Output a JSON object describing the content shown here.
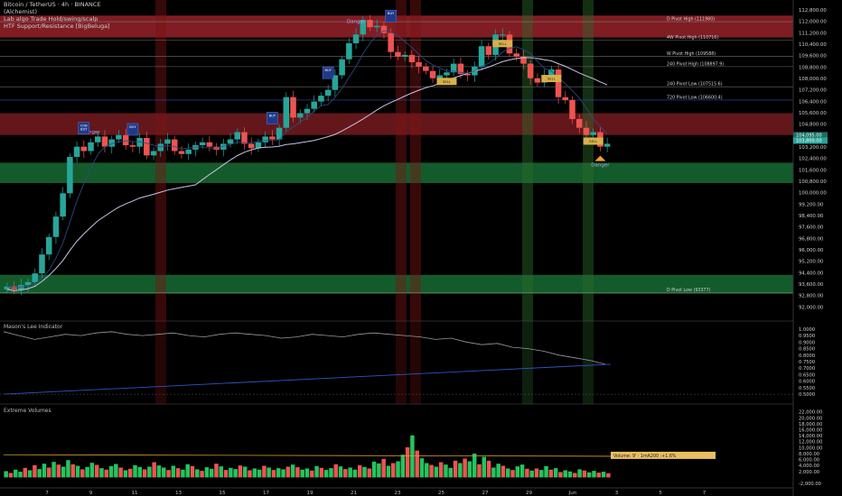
{
  "header": {
    "title": "Bitcoin / TetherUS · 4h · BINANCE",
    "line2": "(Alchemist)",
    "line3": "Lab algo Trade Hold/swing/scalp",
    "line4": "HTF Support/Resistance [BigBeluga]"
  },
  "panes": {
    "lee": "Mason's Lee Indicator",
    "vol": "Extreme Volumes"
  },
  "colors": {
    "up": "#26a69a",
    "up_bright": "#22c55e",
    "down": "#ef5350",
    "resistance": "#b52a32",
    "support": "#1b7a3a",
    "ma": "#c9c3e6",
    "tag_blue": "#1d3a8a",
    "tag_yellow": "#d8b04a"
  },
  "chart_data": [
    {
      "type": "line",
      "name": "price",
      "title": "Bitcoin / TetherUS · 4h · BINANCE",
      "x_tick_labels": [
        "7",
        "9",
        "11",
        "13",
        "15",
        "17",
        "19",
        "21",
        "23",
        "25",
        "27",
        "29",
        "Jun",
        "3",
        "5",
        "7"
      ],
      "y_ticks": [
        "112,800.00",
        "112,000.00",
        "111,200.00",
        "110,400.00",
        "109,600.00",
        "108,800.00",
        "108,000.00",
        "107,200.00",
        "106,400.00",
        "105,600.00",
        "104,800.00",
        "104,000.00",
        "103,200.00",
        "102,400.00",
        "101,600.00",
        "100,800.00",
        "100,000.00",
        "99,200.00",
        "98,400.00",
        "97,600.00",
        "96,800.00",
        "96,000.00",
        "95,200.00",
        "94,400.00",
        "93,600.00",
        "92,800.00",
        "92,000.00"
      ],
      "ylim": [
        91800,
        113100
      ],
      "close_series": [
        93800,
        93600,
        93900,
        94100,
        94700,
        96000,
        97200,
        98600,
        100200,
        102700,
        103400,
        103100,
        103700,
        104100,
        103400,
        103900,
        104200,
        103500,
        103400,
        104000,
        102800,
        103100,
        103600,
        103900,
        103100,
        102900,
        103200,
        103500,
        103700,
        103400,
        103200,
        103600,
        103900,
        104400,
        103600,
        103300,
        103700,
        104100,
        103900,
        104700,
        106800,
        105400,
        105700,
        106000,
        106500,
        106900,
        107300,
        108300,
        109400,
        110500,
        111100,
        112100,
        111600,
        111700,
        111200,
        109900,
        109600,
        109700,
        109200,
        108900,
        108600,
        108100,
        108300,
        108500,
        109100,
        108400,
        108300,
        108900,
        110300,
        109700,
        111100,
        111100,
        109800,
        109600,
        109100,
        108100,
        107800,
        108300,
        108700,
        106800,
        106600,
        105300,
        104700,
        104200,
        104400,
        103400,
        103600
      ],
      "levels": [
        {
          "label": "D Pivot High (111980)",
          "value": 111980
        },
        {
          "label": "4W Pivot High (110716)",
          "value": 110716
        },
        {
          "label": "W Pivot High (109588)",
          "value": 109588
        },
        {
          "label": "240 Pivot High (108897.9)",
          "value": 108897.9
        },
        {
          "label": "240 Pivot Low (107515.6)",
          "value": 107515.6
        },
        {
          "label": "720 Pivot Low (106600.4)",
          "value": 106600.4
        },
        {
          "label": "D Pivot Low (93377)",
          "value": 93377
        }
      ],
      "price_tags": [
        "104,095.00",
        "103,800.00"
      ],
      "signals": [
        {
          "label": "Danger",
          "kind": "text"
        },
        {
          "label": "COB\nBUY",
          "kind": "blue"
        },
        {
          "label": "BUY",
          "kind": "blue"
        },
        {
          "label": "BUY",
          "kind": "blue"
        },
        {
          "label": "BUY",
          "kind": "blue"
        },
        {
          "label": "Danger",
          "kind": "text"
        },
        {
          "label": "BUY",
          "kind": "blue"
        },
        {
          "label": "SELL",
          "kind": "yellow"
        },
        {
          "label": "SELL",
          "kind": "yellow"
        },
        {
          "label": "SELL",
          "kind": "yellow"
        },
        {
          "label": "SELL",
          "kind": "yellow"
        },
        {
          "label": "Danger",
          "kind": "text"
        }
      ]
    },
    {
      "type": "line",
      "name": "Mason's Lee Indicator",
      "y_ticks": [
        "1.0000",
        "0.9500",
        "0.9000",
        "0.8500",
        "0.8000",
        "0.7500",
        "0.7000",
        "0.6500",
        "0.6000",
        "0.5500",
        "0.5000"
      ],
      "ylim": [
        0.48,
        1.02
      ],
      "values": [
        0.98,
        0.95,
        0.92,
        0.94,
        0.96,
        0.95,
        0.97,
        0.98,
        0.96,
        0.95,
        0.96,
        0.97,
        0.95,
        0.94,
        0.96,
        0.97,
        0.96,
        0.95,
        0.93,
        0.94,
        0.96,
        0.95,
        0.94,
        0.96,
        0.97,
        0.96,
        0.95,
        0.94,
        0.92,
        0.93,
        0.9,
        0.88,
        0.89,
        0.86,
        0.85,
        0.83,
        0.8,
        0.78,
        0.76,
        0.73
      ],
      "baseline_values": [
        0.5,
        0.73
      ]
    },
    {
      "type": "bar",
      "name": "Extreme Volumes",
      "y_ticks": [
        "22,000.00",
        "20,000.00",
        "18,000.00",
        "16,000.00",
        "14,000.00",
        "12,000.00",
        "10,000.00",
        "8,000.00",
        "6,000.00",
        "4,000.00",
        "2,000.00",
        "-2,000.00"
      ],
      "ylim": [
        -2000,
        22500
      ],
      "annotation": "Volume: 9' · 1mA200 :+1.6%",
      "values": [
        2100,
        1500,
        2600,
        1900,
        3200,
        2400,
        4100,
        2800,
        4600,
        3300,
        5200,
        4300,
        3600,
        5800,
        4400,
        3900,
        2700,
        3500,
        4900,
        4200,
        3100,
        2600,
        3800,
        4500,
        3300,
        2400,
        2900,
        4100,
        3500,
        2700,
        3600,
        5100,
        4000,
        3300,
        2500,
        3900,
        3100,
        2600,
        4400,
        3800,
        2700,
        2200,
        3400,
        2900,
        4600,
        3700,
        2500,
        3200,
        2800,
        4000,
        3600,
        2400,
        3000,
        2600,
        3900,
        3300,
        2500,
        3100,
        2700,
        3600,
        4300,
        3400,
        2600,
        3000,
        2300,
        3800,
        3200,
        2500,
        3100,
        4400,
        3700,
        2800,
        3300,
        2600,
        4100,
        3500,
        3000,
        5300,
        4700,
        6200,
        3900,
        4800,
        5400,
        7600,
        10100,
        14100,
        9000,
        6400,
        4800,
        4200,
        3600,
        5100,
        4300,
        3200,
        5600,
        4800,
        6300,
        5400,
        8000,
        4400,
        6900,
        5600,
        3300,
        4600,
        3900,
        3000,
        2500,
        3700,
        4300,
        2900,
        2300,
        3000,
        2500,
        3800,
        2600,
        3100,
        1800,
        2400,
        2000,
        1500,
        2700,
        2300,
        1700,
        2200,
        1600,
        1900,
        1400
      ],
      "colors_hint": "mixed green/red"
    }
  ]
}
